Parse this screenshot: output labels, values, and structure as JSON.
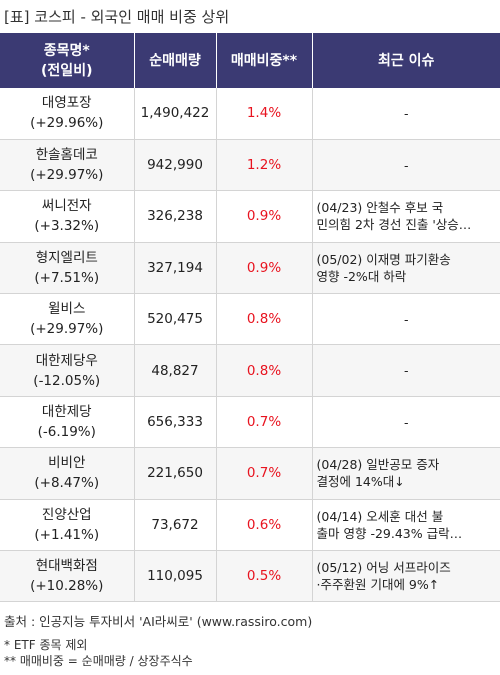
{
  "title": "[표] 코스피 - 외국인 매매 비중 상위",
  "headers": {
    "name_line1": "종목명*",
    "name_line2": "(전일비)",
    "volume": "순매매량",
    "ratio": "매매비중**",
    "issue": "최근 이슈"
  },
  "rows": [
    {
      "name": "대영포장",
      "change": "(+29.96%)",
      "volume": "1,490,422",
      "ratio": "1.4%",
      "issue_line1": "-",
      "issue_line2": ""
    },
    {
      "name": "한솔홈데코",
      "change": "(+29.97%)",
      "volume": "942,990",
      "ratio": "1.2%",
      "issue_line1": "-",
      "issue_line2": ""
    },
    {
      "name": "써니전자",
      "change": "(+3.32%)",
      "volume": "326,238",
      "ratio": "0.9%",
      "issue_line1": "(04/23) 안철수 후보 국",
      "issue_line2": "민의힘 2차 경선 진출 '상승…"
    },
    {
      "name": "형지엘리트",
      "change": "(+7.51%)",
      "volume": "327,194",
      "ratio": "0.9%",
      "issue_line1": "(05/02) 이재명 파기환송",
      "issue_line2": " 영향 -2%대 하락"
    },
    {
      "name": "윌비스",
      "change": "(+29.97%)",
      "volume": "520,475",
      "ratio": "0.8%",
      "issue_line1": "-",
      "issue_line2": ""
    },
    {
      "name": "대한제당우",
      "change": "(-12.05%)",
      "volume": "48,827",
      "ratio": "0.8%",
      "issue_line1": "-",
      "issue_line2": ""
    },
    {
      "name": "대한제당",
      "change": "(-6.19%)",
      "volume": "656,333",
      "ratio": "0.7%",
      "issue_line1": "-",
      "issue_line2": ""
    },
    {
      "name": "비비안",
      "change": "(+8.47%)",
      "volume": "221,650",
      "ratio": "0.7%",
      "issue_line1": "(04/28) 일반공모 증자",
      "issue_line2": "결정에 14%대↓"
    },
    {
      "name": "진양산업",
      "change": "(+1.41%)",
      "volume": "73,672",
      "ratio": "0.6%",
      "issue_line1": "(04/14) 오세훈 대선 불",
      "issue_line2": "출마 영향 -29.43% 급락…"
    },
    {
      "name": "현대백화점",
      "change": "(+10.28%)",
      "volume": "110,095",
      "ratio": "0.5%",
      "issue_line1": "(05/12) 어닝 서프라이즈",
      "issue_line2": "·주주환원 기대에 9%↑"
    }
  ],
  "source": "출처 : 인공지능 투자비서 'AI라씨로' (www.rassiro.com)",
  "note1": "* ETF 종목 제외",
  "note2": "** 매매비중 = 순매매량 / 상장주식수",
  "colors": {
    "header_bg": "#3b3a73",
    "ratio_text": "#e8131f",
    "stripe_bg": "#f6f6f6"
  }
}
